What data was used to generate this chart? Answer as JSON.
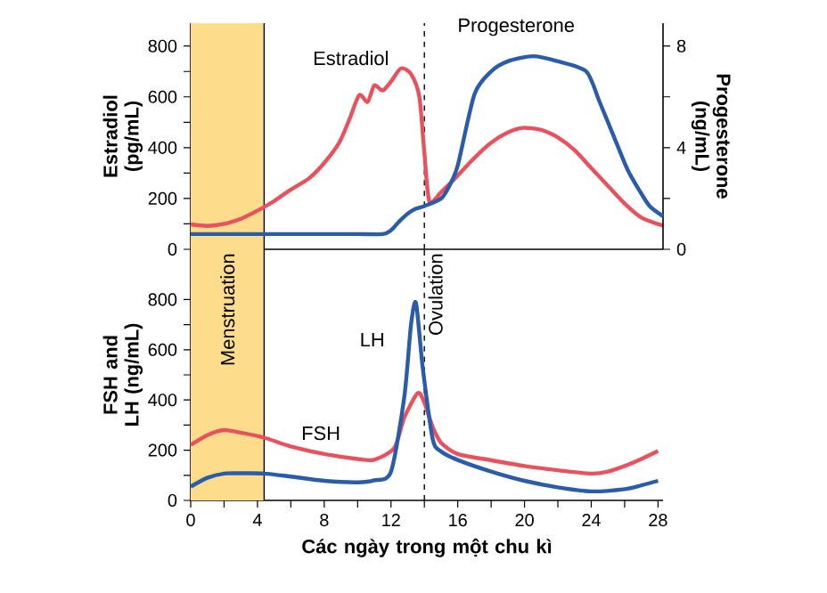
{
  "chart_data": [
    {
      "type": "line",
      "xlim": [
        0,
        28.3
      ],
      "ylim": [
        0,
        890
      ],
      "y2lim": [
        0,
        8.9
      ],
      "tick_labels": "y",
      "yticks": [
        0,
        {
          "value": 100,
          "label": null
        },
        200,
        {
          "value": 300,
          "label": null
        },
        400,
        {
          "value": 500,
          "label": null
        },
        600,
        {
          "value": 700,
          "label": null
        },
        800
      ],
      "y2ticks": [
        0,
        {
          "value": 2,
          "label": null
        },
        4,
        {
          "value": 6,
          "label": null
        },
        8
      ],
      "ylabel": "Estradiol (pg/mL)",
      "y2label": "Progesterone (ng/mL)",
      "series": [
        {
          "name": "Estradiol",
          "color": "#e8525f",
          "x": [
            0,
            1,
            2,
            3,
            4.2,
            5,
            6,
            7.1,
            8,
            8.9,
            9.5,
            10.1,
            10.6,
            11,
            11.5,
            12,
            12.6,
            13.2,
            13.7,
            14,
            14.3,
            15,
            16,
            17,
            18,
            19,
            19.9,
            21,
            22,
            23,
            24,
            25,
            26,
            27,
            28.3
          ],
          "values": [
            98,
            92,
            100,
            120,
            159,
            190,
            235,
            280,
            340,
            420,
            510,
            607,
            580,
            645,
            625,
            660,
            712,
            690,
            600,
            380,
            189,
            225,
            290,
            360,
            420,
            460,
            478,
            470,
            440,
            390,
            320,
            250,
            180,
            125,
            93
          ]
        },
        {
          "name": "Progesterone",
          "color": "#2a5caa",
          "axis": "y2",
          "x": [
            0,
            2,
            4,
            6,
            8,
            10,
            11.5,
            12,
            12.5,
            13,
            13.5,
            14,
            15,
            15.5,
            16,
            17,
            18,
            19,
            20.5,
            22,
            23.7,
            24.5,
            25.5,
            26.2,
            26.9,
            27.5,
            28.3
          ],
          "values": [
            0.6,
            0.6,
            0.6,
            0.6,
            0.6,
            0.6,
            0.6,
            0.75,
            1.1,
            1.4,
            1.6,
            1.7,
            2.0,
            2.5,
            3.3,
            6.1,
            7.0,
            7.4,
            7.6,
            7.4,
            7.0,
            5.8,
            4.2,
            3.1,
            2.3,
            1.7,
            1.3
          ]
        }
      ],
      "bands": [
        {
          "axis": "x",
          "from": 0,
          "to": 4.4,
          "color": "#fddc8c"
        }
      ],
      "ref_lines": [
        {
          "axis": "x",
          "value": 4.4,
          "color": "#000000",
          "line_style": "solid"
        },
        {
          "axis": "x",
          "value": 14,
          "color": "#000000",
          "line_style": "dashed"
        }
      ]
    },
    {
      "type": "line",
      "xlim": [
        0,
        28.3
      ],
      "ylim": [
        0,
        1000
      ],
      "xticks": [
        0,
        {
          "value": 2,
          "label": null
        },
        4,
        {
          "value": 6,
          "label": null
        },
        8,
        {
          "value": 10,
          "label": null
        },
        12,
        {
          "value": 14,
          "label": null
        },
        16,
        {
          "value": 18,
          "label": null
        },
        20,
        {
          "value": 22,
          "label": null
        },
        24,
        {
          "value": 26,
          "label": null
        },
        28
      ],
      "yticks": [
        0,
        {
          "value": 100,
          "label": null
        },
        200,
        {
          "value": 300,
          "label": null
        },
        400,
        {
          "value": 500,
          "label": null
        },
        600,
        {
          "value": 700,
          "label": null
        },
        800
      ],
      "xlabel": "Các ngày trong một chu kì",
      "ylabel": "FSH and LH (ng/mL)",
      "series": [
        {
          "name": "FSH",
          "color": "#e8525f",
          "x": [
            0,
            1,
            2,
            3,
            4.4,
            6,
            8,
            10,
            11,
            12.2,
            12.8,
            13.6,
            14,
            14.5,
            15,
            16,
            18,
            20,
            22,
            24,
            25,
            26,
            27,
            28
          ],
          "values": [
            221,
            260,
            280,
            270,
            250,
            215,
            185,
            165,
            162,
            209,
            330,
            427,
            390,
            292,
            230,
            185,
            160,
            137,
            120,
            107,
            115,
            137,
            165,
            197
          ]
        },
        {
          "name": "LH",
          "color": "#2a5caa",
          "x": [
            0,
            1,
            2,
            3,
            4.4,
            6,
            8,
            10,
            11,
            12,
            12.8,
            13.2,
            13.5,
            13.9,
            14.5,
            15,
            16,
            18,
            20,
            22,
            24,
            26,
            27,
            28
          ],
          "values": [
            55,
            90,
            107,
            108,
            107,
            95,
            78,
            72,
            80,
            114,
            413,
            700,
            786,
            530,
            244,
            195,
            161,
            115,
            78,
            52,
            36,
            45,
            60,
            78
          ]
        }
      ],
      "bands": [
        {
          "axis": "x",
          "from": 0,
          "to": 4.4,
          "color": "#fddc8c",
          "label": "Menstruation"
        }
      ],
      "ref_lines": [
        {
          "axis": "x",
          "value": 4.4,
          "color": "#000000",
          "line_style": "solid"
        },
        {
          "axis": "x",
          "value": 14,
          "color": "#000000",
          "line_style": "dashed",
          "label": "Ovulation"
        }
      ]
    }
  ]
}
